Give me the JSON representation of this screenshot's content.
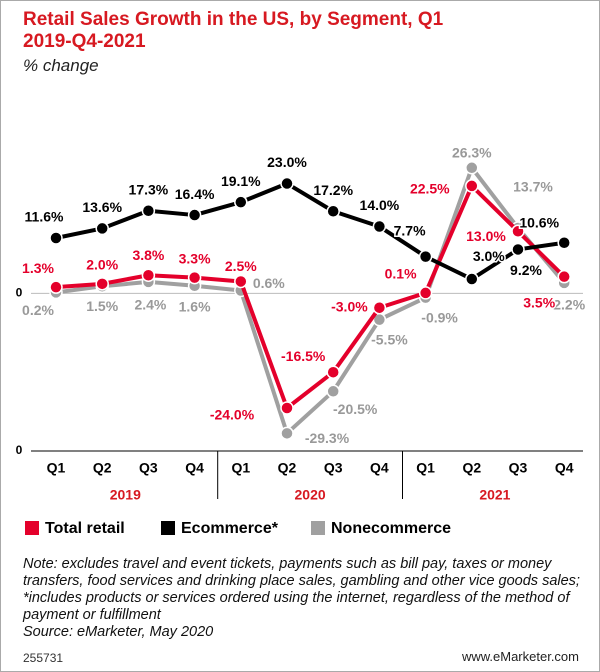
{
  "chart_data": {
    "type": "line",
    "title": "Retail Sales Growth in the US, by Segment, Q1 2019-Q4-2021",
    "subtitle": "% change",
    "categories": [
      "Q1",
      "Q2",
      "Q3",
      "Q4",
      "Q1",
      "Q2",
      "Q3",
      "Q4",
      "Q1",
      "Q2",
      "Q3",
      "Q4"
    ],
    "year_labels": [
      "2019",
      "2020",
      "2021"
    ],
    "ylim": [
      -33,
      34
    ],
    "yticks": [
      {
        "value": -33,
        "label": "0"
      },
      0
    ],
    "series": [
      {
        "name": "Total retail",
        "color": "#e4002b",
        "values": [
          1.3,
          2.0,
          3.8,
          3.3,
          2.5,
          -24.0,
          -16.5,
          -3.0,
          0.1,
          22.5,
          13.0,
          3.5
        ],
        "value_labels": [
          "1.3%",
          "2.0%",
          "3.8%",
          "3.3%",
          "2.5%",
          "-24.0%",
          "-16.5%",
          "-3.0%",
          "0.1%",
          "22.5%",
          "13.0%",
          "3.5%"
        ]
      },
      {
        "name": "Ecommerce*",
        "color": "#000000",
        "values": [
          11.6,
          13.6,
          17.3,
          16.4,
          19.1,
          23.0,
          17.2,
          14.0,
          7.7,
          3.0,
          9.2,
          10.6
        ],
        "value_labels": [
          "11.6%",
          "13.6%",
          "17.3%",
          "16.4%",
          "19.1%",
          "23.0%",
          "17.2%",
          "14.0%",
          "7.7%",
          "3.0%",
          "9.2%",
          "10.6%"
        ]
      },
      {
        "name": "Nonecommerce",
        "color": "#a0a0a0",
        "values": [
          0.2,
          1.5,
          2.4,
          1.6,
          0.6,
          -29.3,
          -20.5,
          -5.5,
          -0.9,
          26.3,
          13.7,
          2.2
        ],
        "value_labels": [
          "0.2%",
          "1.5%",
          "2.4%",
          "1.6%",
          "0.6%",
          "-29.3%",
          "-20.5%",
          "-5.5%",
          "-0.9%",
          "26.3%",
          "13.7%",
          "2.2%"
        ]
      }
    ],
    "note": "Note: excludes travel and event tickets, payments such as bill pay, taxes or money transfers, food services and drinking place sales, gambling and other vice goods sales; *includes products or services ordered using the internet, regardless of the method of payment or fulfillment",
    "source": "Source: eMarketer, May 2020",
    "chart_id": "255731",
    "website": "www.eMarketer.com"
  }
}
